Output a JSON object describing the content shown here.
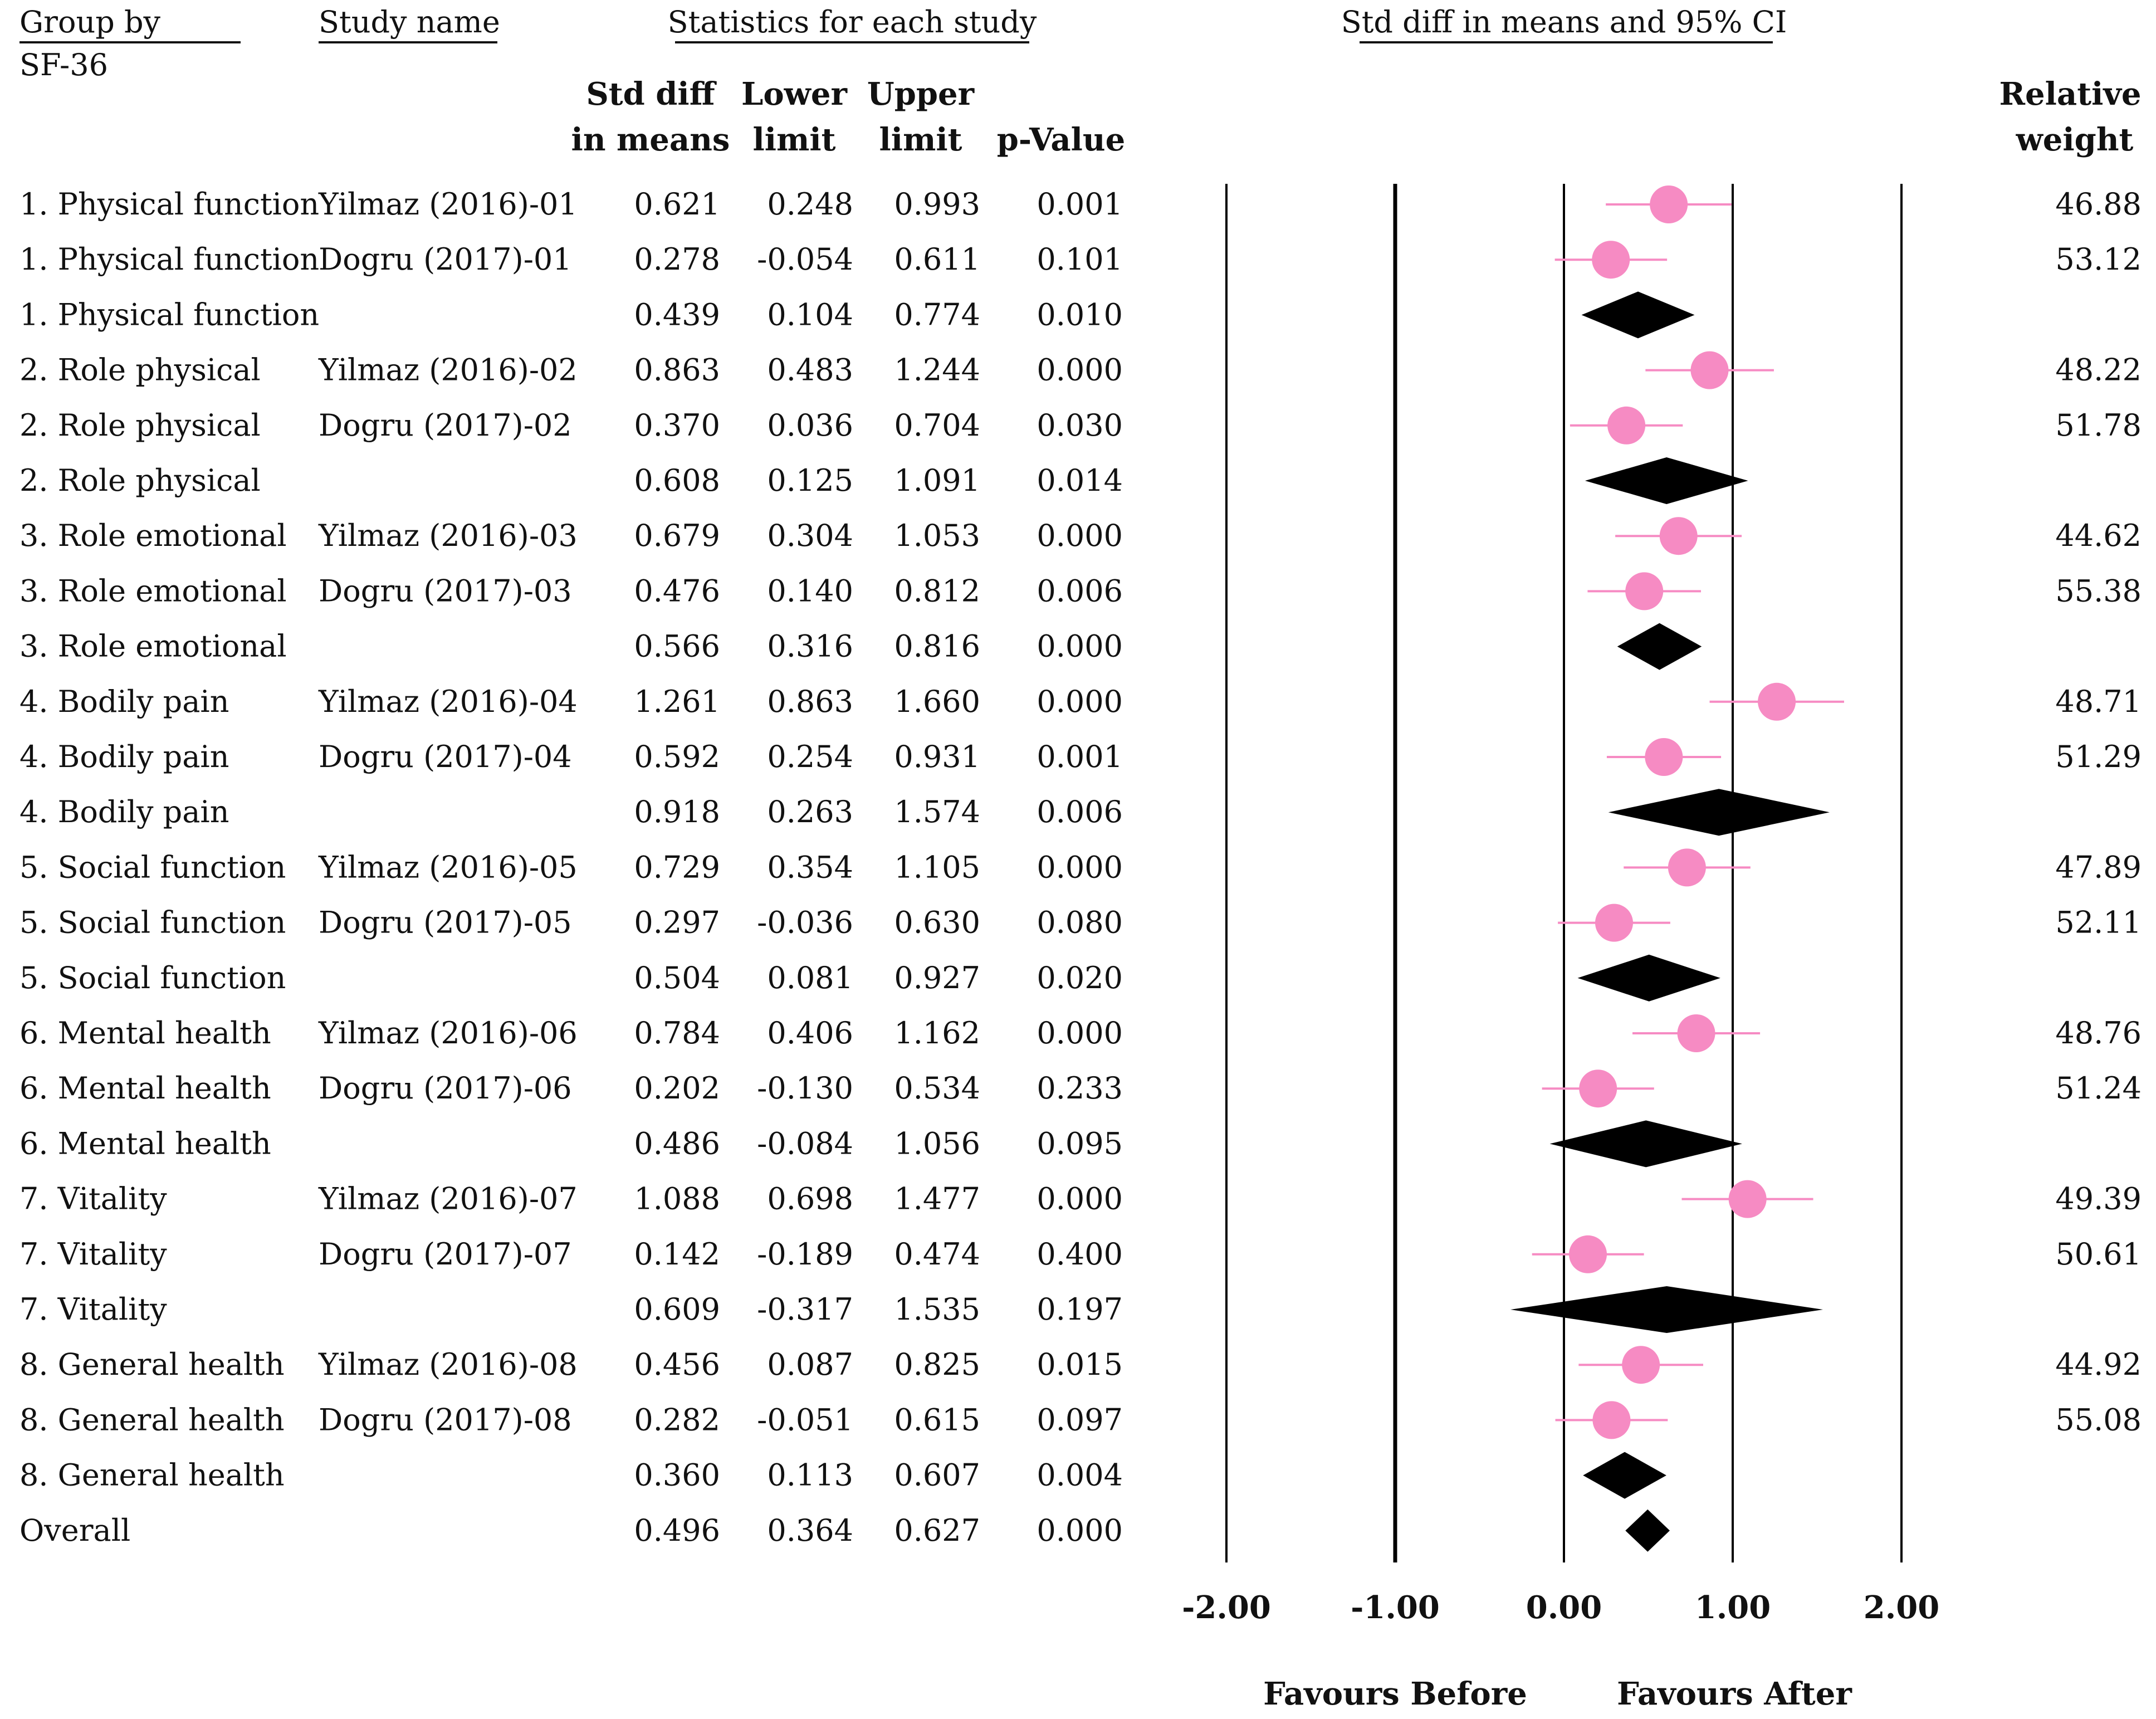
{
  "header": {
    "group_by": "Group by",
    "group_value": "SF-36",
    "study_name": "Study name",
    "stats_title": "Statistics for each study",
    "plot_title": "Std diff in means and 95% CI",
    "col_std_diff_1": "Std diff",
    "col_std_diff_2": "in means",
    "col_lower_1": "Lower",
    "col_lower_2": "limit",
    "col_upper_1": "Upper",
    "col_upper_2": "limit",
    "col_p": "p-Value",
    "col_weight_1": "Relative",
    "col_weight_2": "weight"
  },
  "footer": {
    "favours_left": "Favours Before",
    "favours_right": "Favours After"
  },
  "colors": {
    "study_marker": "#f68bc3",
    "study_line": "#f68bc3",
    "summary_diamond": "#000000",
    "axis_line": "#000000"
  },
  "chart_data": {
    "type": "forest",
    "title": "Std diff in means and 95% CI",
    "xlim": [
      -2.0,
      2.0
    ],
    "xticks": [
      -2.0,
      -1.0,
      0.0,
      1.0,
      2.0
    ],
    "tick_labels": [
      "-2.00",
      "-1.00",
      "0.00",
      "1.00",
      "2.00"
    ],
    "rows": [
      {
        "group": "1. Physical function",
        "study": "Yilmaz (2016)-01",
        "std_diff": "0.621",
        "lower": "0.248",
        "upper": "0.993",
        "p": "0.001",
        "weight": "46.88",
        "kind": "study",
        "est": 0.621,
        "lo": 0.248,
        "hi": 0.993
      },
      {
        "group": "1. Physical function",
        "study": "Dogru (2017)-01",
        "std_diff": "0.278",
        "lower": "-0.054",
        "upper": "0.611",
        "p": "0.101",
        "weight": "53.12",
        "kind": "study",
        "est": 0.278,
        "lo": -0.054,
        "hi": 0.611
      },
      {
        "group": "1. Physical function",
        "study": "",
        "std_diff": "0.439",
        "lower": "0.104",
        "upper": "0.774",
        "p": "0.010",
        "weight": "",
        "kind": "summary",
        "est": 0.439,
        "lo": 0.104,
        "hi": 0.774
      },
      {
        "group": "2. Role physical",
        "study": "Yilmaz (2016)-02",
        "std_diff": "0.863",
        "lower": "0.483",
        "upper": "1.244",
        "p": "0.000",
        "weight": "48.22",
        "kind": "study",
        "est": 0.863,
        "lo": 0.483,
        "hi": 1.244
      },
      {
        "group": "2. Role physical",
        "study": "Dogru (2017)-02",
        "std_diff": "0.370",
        "lower": "0.036",
        "upper": "0.704",
        "p": "0.030",
        "weight": "51.78",
        "kind": "study",
        "est": 0.37,
        "lo": 0.036,
        "hi": 0.704
      },
      {
        "group": "2. Role physical",
        "study": "",
        "std_diff": "0.608",
        "lower": "0.125",
        "upper": "1.091",
        "p": "0.014",
        "weight": "",
        "kind": "summary",
        "est": 0.608,
        "lo": 0.125,
        "hi": 1.091
      },
      {
        "group": "3. Role emotional",
        "study": "Yilmaz (2016)-03",
        "std_diff": "0.679",
        "lower": "0.304",
        "upper": "1.053",
        "p": "0.000",
        "weight": "44.62",
        "kind": "study",
        "est": 0.679,
        "lo": 0.304,
        "hi": 1.053
      },
      {
        "group": "3. Role emotional",
        "study": "Dogru (2017)-03",
        "std_diff": "0.476",
        "lower": "0.140",
        "upper": "0.812",
        "p": "0.006",
        "weight": "55.38",
        "kind": "study",
        "est": 0.476,
        "lo": 0.14,
        "hi": 0.812
      },
      {
        "group": "3. Role emotional",
        "study": "",
        "std_diff": "0.566",
        "lower": "0.316",
        "upper": "0.816",
        "p": "0.000",
        "weight": "",
        "kind": "summary",
        "est": 0.566,
        "lo": 0.316,
        "hi": 0.816
      },
      {
        "group": "4. Bodily pain",
        "study": "Yilmaz (2016)-04",
        "std_diff": "1.261",
        "lower": "0.863",
        "upper": "1.660",
        "p": "0.000",
        "weight": "48.71",
        "kind": "study",
        "est": 1.261,
        "lo": 0.863,
        "hi": 1.66
      },
      {
        "group": "4. Bodily pain",
        "study": "Dogru (2017)-04",
        "std_diff": "0.592",
        "lower": "0.254",
        "upper": "0.931",
        "p": "0.001",
        "weight": "51.29",
        "kind": "study",
        "est": 0.592,
        "lo": 0.254,
        "hi": 0.931
      },
      {
        "group": "4. Bodily pain",
        "study": "",
        "std_diff": "0.918",
        "lower": "0.263",
        "upper": "1.574",
        "p": "0.006",
        "weight": "",
        "kind": "summary",
        "est": 0.918,
        "lo": 0.263,
        "hi": 1.574
      },
      {
        "group": "5. Social function",
        "study": "Yilmaz (2016)-05",
        "std_diff": "0.729",
        "lower": "0.354",
        "upper": "1.105",
        "p": "0.000",
        "weight": "47.89",
        "kind": "study",
        "est": 0.729,
        "lo": 0.354,
        "hi": 1.105
      },
      {
        "group": "5. Social function",
        "study": "Dogru (2017)-05",
        "std_diff": "0.297",
        "lower": "-0.036",
        "upper": "0.630",
        "p": "0.080",
        "weight": "52.11",
        "kind": "study",
        "est": 0.297,
        "lo": -0.036,
        "hi": 0.63
      },
      {
        "group": "5. Social function",
        "study": "",
        "std_diff": "0.504",
        "lower": "0.081",
        "upper": "0.927",
        "p": "0.020",
        "weight": "",
        "kind": "summary",
        "est": 0.504,
        "lo": 0.081,
        "hi": 0.927
      },
      {
        "group": "6. Mental health",
        "study": "Yilmaz (2016)-06",
        "std_diff": "0.784",
        "lower": "0.406",
        "upper": "1.162",
        "p": "0.000",
        "weight": "48.76",
        "kind": "study",
        "est": 0.784,
        "lo": 0.406,
        "hi": 1.162
      },
      {
        "group": "6. Mental health",
        "study": "Dogru (2017)-06",
        "std_diff": "0.202",
        "lower": "-0.130",
        "upper": "0.534",
        "p": "0.233",
        "weight": "51.24",
        "kind": "study",
        "est": 0.202,
        "lo": -0.13,
        "hi": 0.534
      },
      {
        "group": "6. Mental health",
        "study": "",
        "std_diff": "0.486",
        "lower": "-0.084",
        "upper": "1.056",
        "p": "0.095",
        "weight": "",
        "kind": "summary",
        "est": 0.486,
        "lo": -0.084,
        "hi": 1.056
      },
      {
        "group": "7. Vitality",
        "study": "Yilmaz (2016)-07",
        "std_diff": "1.088",
        "lower": "0.698",
        "upper": "1.477",
        "p": "0.000",
        "weight": "49.39",
        "kind": "study",
        "est": 1.088,
        "lo": 0.698,
        "hi": 1.477
      },
      {
        "group": "7. Vitality",
        "study": "Dogru (2017)-07",
        "std_diff": "0.142",
        "lower": "-0.189",
        "upper": "0.474",
        "p": "0.400",
        "weight": "50.61",
        "kind": "study",
        "est": 0.142,
        "lo": -0.189,
        "hi": 0.474
      },
      {
        "group": "7. Vitality",
        "study": "",
        "std_diff": "0.609",
        "lower": "-0.317",
        "upper": "1.535",
        "p": "0.197",
        "weight": "",
        "kind": "summary",
        "est": 0.609,
        "lo": -0.317,
        "hi": 1.535
      },
      {
        "group": "8. General health",
        "study": "Yilmaz (2016)-08",
        "std_diff": "0.456",
        "lower": "0.087",
        "upper": "0.825",
        "p": "0.015",
        "weight": "44.92",
        "kind": "study",
        "est": 0.456,
        "lo": 0.087,
        "hi": 0.825
      },
      {
        "group": "8. General health",
        "study": "Dogru (2017)-08",
        "std_diff": "0.282",
        "lower": "-0.051",
        "upper": "0.615",
        "p": "0.097",
        "weight": "55.08",
        "kind": "study",
        "est": 0.282,
        "lo": -0.051,
        "hi": 0.615
      },
      {
        "group": "8. General health",
        "study": "",
        "std_diff": "0.360",
        "lower": "0.113",
        "upper": "0.607",
        "p": "0.004",
        "weight": "",
        "kind": "summary",
        "est": 0.36,
        "lo": 0.113,
        "hi": 0.607
      },
      {
        "group": "Overall",
        "study": "",
        "std_diff": "0.496",
        "lower": "0.364",
        "upper": "0.627",
        "p": "0.000",
        "weight": "",
        "kind": "overall",
        "est": 0.496,
        "lo": 0.364,
        "hi": 0.627
      }
    ]
  }
}
